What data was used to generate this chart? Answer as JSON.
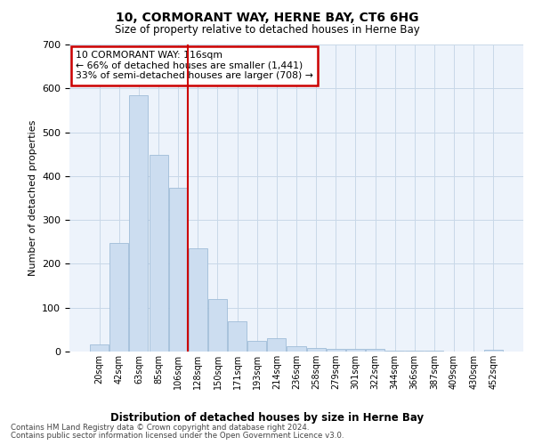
{
  "title": "10, CORMORANT WAY, HERNE BAY, CT6 6HG",
  "subtitle": "Size of property relative to detached houses in Herne Bay",
  "xlabel": "Distribution of detached houses by size in Herne Bay",
  "ylabel": "Number of detached properties",
  "bar_color": "#ccddf0",
  "bar_edge_color": "#a0bcd8",
  "grid_color": "#c8d8e8",
  "bg_color": "#edf3fb",
  "categories": [
    "20sqm",
    "42sqm",
    "63sqm",
    "85sqm",
    "106sqm",
    "128sqm",
    "150sqm",
    "171sqm",
    "193sqm",
    "214sqm",
    "236sqm",
    "258sqm",
    "279sqm",
    "301sqm",
    "322sqm",
    "344sqm",
    "366sqm",
    "387sqm",
    "409sqm",
    "430sqm",
    "452sqm"
  ],
  "values": [
    16,
    247,
    585,
    448,
    373,
    235,
    120,
    68,
    24,
    30,
    13,
    9,
    7,
    7,
    7,
    3,
    3,
    3,
    0,
    0,
    5
  ],
  "property_line_x": 4.5,
  "property_line_color": "#cc0000",
  "annotation_text": "10 CORMORANT WAY: 116sqm\n← 66% of detached houses are smaller (1,441)\n33% of semi-detached houses are larger (708) →",
  "annotation_box_color": "#cc0000",
  "ylim": [
    0,
    700
  ],
  "yticks": [
    0,
    100,
    200,
    300,
    400,
    500,
    600,
    700
  ],
  "footer_line1": "Contains HM Land Registry data © Crown copyright and database right 2024.",
  "footer_line2": "Contains public sector information licensed under the Open Government Licence v3.0."
}
